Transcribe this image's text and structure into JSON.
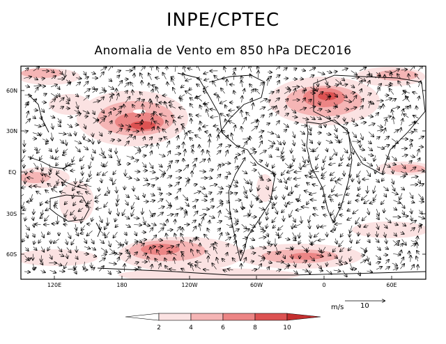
{
  "header": {
    "title": "INPE/CPTEC",
    "subtitle": "Anomalia de Vento em 850 hPa DEC2016"
  },
  "map": {
    "lat_labels": [
      "60N",
      "30N",
      "EQ",
      "30S",
      "60S"
    ],
    "lon_labels": [
      "120E",
      "180",
      "120W",
      "60W",
      "0",
      "60E"
    ],
    "lat_values": [
      60,
      30,
      0,
      -30,
      -60
    ],
    "lon_values": [
      120,
      180,
      240,
      300,
      360,
      420
    ],
    "extent": {
      "lon_min": 90,
      "lon_max": 450,
      "lat_min": -80,
      "lat_max": 80
    }
  },
  "legend": {
    "levels": [
      "2",
      "4",
      "6",
      "8",
      "10"
    ],
    "colors": [
      "#ffffff",
      "#fbe2e2",
      "#f5b5b5",
      "#ec8585",
      "#dc5252",
      "#c42f2f"
    ]
  },
  "reference_vector": {
    "units": "m/s",
    "value": "10"
  },
  "colors": {
    "shade_light": "#fbe2e2",
    "shade_mid": "#f5b5b5",
    "shade_strong": "#ec8585",
    "shade_max": "#dc5252"
  }
}
